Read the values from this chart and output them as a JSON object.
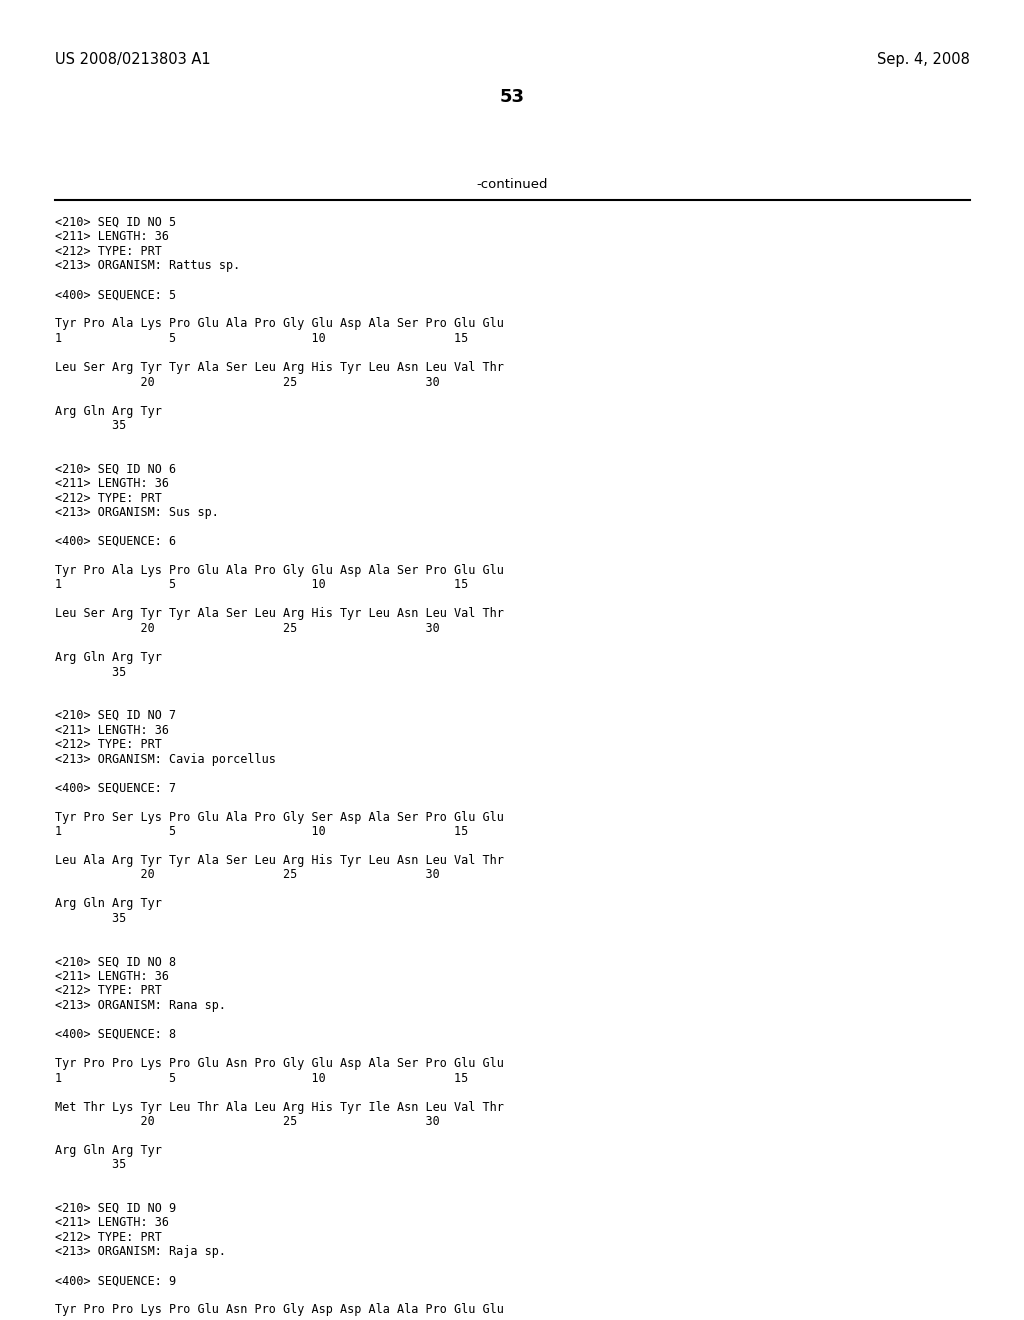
{
  "background_color": "#ffffff",
  "header_left": "US 2008/0213803 A1",
  "header_right": "Sep. 4, 2008",
  "page_number": "53",
  "continued_label": "-continued",
  "content_lines": [
    "<210> SEQ ID NO 5",
    "<211> LENGTH: 36",
    "<212> TYPE: PRT",
    "<213> ORGANISM: Rattus sp.",
    "",
    "<400> SEQUENCE: 5",
    "",
    "Tyr Pro Ala Lys Pro Glu Ala Pro Gly Glu Asp Ala Ser Pro Glu Glu",
    "1               5                   10                  15",
    "",
    "Leu Ser Arg Tyr Tyr Ala Ser Leu Arg His Tyr Leu Asn Leu Val Thr",
    "            20                  25                  30",
    "",
    "Arg Gln Arg Tyr",
    "        35",
    "",
    "",
    "<210> SEQ ID NO 6",
    "<211> LENGTH: 36",
    "<212> TYPE: PRT",
    "<213> ORGANISM: Sus sp.",
    "",
    "<400> SEQUENCE: 6",
    "",
    "Tyr Pro Ala Lys Pro Glu Ala Pro Gly Glu Asp Ala Ser Pro Glu Glu",
    "1               5                   10                  15",
    "",
    "Leu Ser Arg Tyr Tyr Ala Ser Leu Arg His Tyr Leu Asn Leu Val Thr",
    "            20                  25                  30",
    "",
    "Arg Gln Arg Tyr",
    "        35",
    "",
    "",
    "<210> SEQ ID NO 7",
    "<211> LENGTH: 36",
    "<212> TYPE: PRT",
    "<213> ORGANISM: Cavia porcellus",
    "",
    "<400> SEQUENCE: 7",
    "",
    "Tyr Pro Ser Lys Pro Glu Ala Pro Gly Ser Asp Ala Ser Pro Glu Glu",
    "1               5                   10                  15",
    "",
    "Leu Ala Arg Tyr Tyr Ala Ser Leu Arg His Tyr Leu Asn Leu Val Thr",
    "            20                  25                  30",
    "",
    "Arg Gln Arg Tyr",
    "        35",
    "",
    "",
    "<210> SEQ ID NO 8",
    "<211> LENGTH: 36",
    "<212> TYPE: PRT",
    "<213> ORGANISM: Rana sp.",
    "",
    "<400> SEQUENCE: 8",
    "",
    "Tyr Pro Pro Lys Pro Glu Asn Pro Gly Glu Asp Ala Ser Pro Glu Glu",
    "1               5                   10                  15",
    "",
    "Met Thr Lys Tyr Leu Thr Ala Leu Arg His Tyr Ile Asn Leu Val Thr",
    "            20                  25                  30",
    "",
    "Arg Gln Arg Tyr",
    "        35",
    "",
    "",
    "<210> SEQ ID NO 9",
    "<211> LENGTH: 36",
    "<212> TYPE: PRT",
    "<213> ORGANISM: Raja sp.",
    "",
    "<400> SEQUENCE: 9",
    "",
    "Tyr Pro Pro Lys Pro Glu Asn Pro Gly Asp Asp Ala Ala Pro Glu Glu"
  ]
}
